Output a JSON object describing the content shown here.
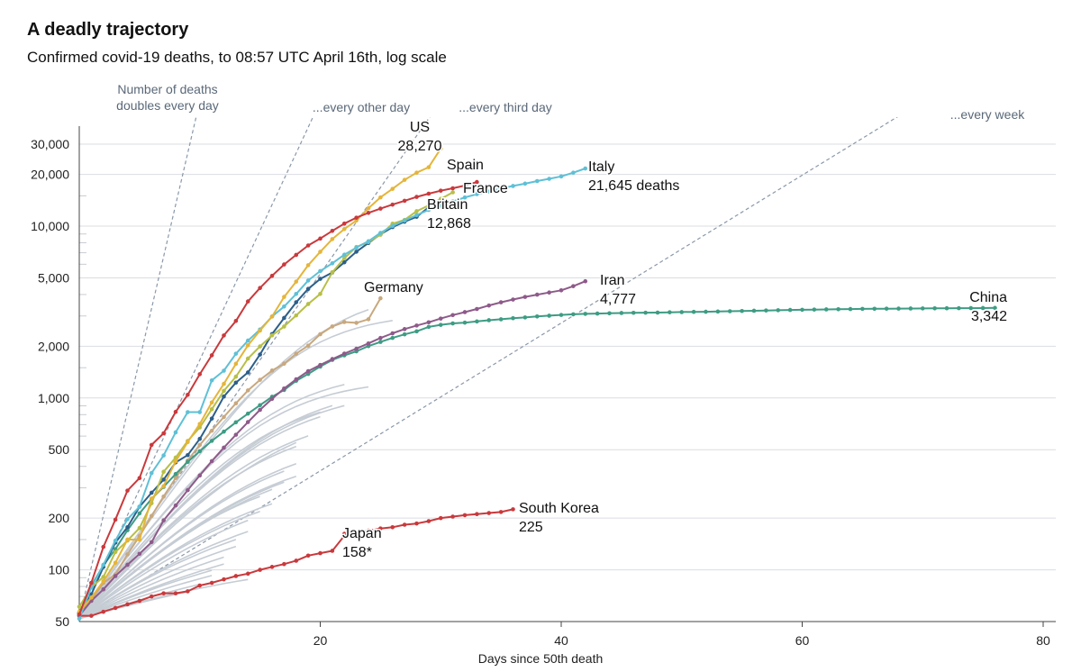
{
  "chart_data": {
    "type": "line",
    "title": "A deadly trajectory",
    "subtitle": "Confirmed covid-19 deaths, to 08:57 UTC April 16th, log scale",
    "xlabel": "Days since 50th death",
    "ylabel": "",
    "yscale": "log",
    "xlim": [
      0,
      80
    ],
    "ylim": [
      50,
      42000
    ],
    "x_ticks": [
      20,
      40,
      60,
      80
    ],
    "y_ticks": [
      50,
      100,
      200,
      500,
      1000,
      2000,
      5000,
      10000,
      20000,
      30000
    ],
    "y_tick_labels": [
      "50",
      "100",
      "200",
      "500",
      "1,000",
      "2,000",
      "5,000",
      "10,000",
      "20,000",
      "30,000"
    ],
    "grid": "horizontal",
    "reference_lines": [
      {
        "label_lines": [
          "Number of deaths",
          "doubles every day"
        ],
        "doubling_days": 1
      },
      {
        "label_lines": [
          "...every other day"
        ],
        "doubling_days": 2
      },
      {
        "label_lines": [
          "...every third day"
        ],
        "doubling_days": 3
      },
      {
        "label_lines": [
          "...every week"
        ],
        "doubling_days": 7
      }
    ],
    "series": [
      {
        "name": "China",
        "label_lines": [
          "China",
          "3,342"
        ],
        "color": "#3e9c84",
        "x": [
          0,
          1,
          2,
          3,
          4,
          5,
          6,
          7,
          8,
          9,
          10,
          11,
          12,
          13,
          14,
          15,
          16,
          17,
          18,
          19,
          20,
          21,
          22,
          23,
          24,
          25,
          26,
          27,
          28,
          29,
          30,
          31,
          32,
          33,
          34,
          35,
          36,
          37,
          38,
          39,
          40,
          41,
          42,
          43,
          44,
          45,
          46,
          47,
          48,
          49,
          50,
          51,
          52,
          53,
          54,
          55,
          56,
          57,
          58,
          59,
          60,
          61,
          62,
          63,
          64,
          65,
          66,
          67,
          68,
          69,
          70,
          71,
          72,
          73,
          74,
          75,
          76
        ],
        "y": [
          56,
          81,
          106,
          132,
          170,
          213,
          259,
          304,
          361,
          425,
          490,
          563,
          637,
          722,
          811,
          908,
          1016,
          1113,
          1259,
          1380,
          1523,
          1665,
          1770,
          1868,
          2004,
          2118,
          2236,
          2345,
          2442,
          2592,
          2663,
          2715,
          2744,
          2788,
          2835,
          2870,
          2912,
          2943,
          2981,
          3012,
          3042,
          3069,
          3087,
          3099,
          3111,
          3122,
          3130,
          3135,
          3140,
          3153,
          3161,
          3170,
          3174,
          3185,
          3197,
          3207,
          3218,
          3229,
          3241,
          3253,
          3261,
          3268,
          3276,
          3283,
          3292,
          3300,
          3304,
          3308,
          3312,
          3316,
          3320,
          3324,
          3327,
          3330,
          3333,
          3336,
          3342
        ]
      },
      {
        "name": "Italy",
        "label_lines": [
          "Italy",
          "21,645 deaths"
        ],
        "color": "#5fc0d6",
        "x": [
          0,
          1,
          2,
          3,
          4,
          5,
          6,
          7,
          8,
          9,
          10,
          11,
          12,
          13,
          14,
          15,
          16,
          17,
          18,
          19,
          20,
          21,
          22,
          23,
          24,
          25,
          26,
          27,
          28,
          29,
          30,
          31,
          32,
          33,
          34,
          35,
          36,
          37,
          38,
          39,
          40,
          41,
          42
        ],
        "y": [
          52,
          79,
          107,
          148,
          197,
          233,
          366,
          463,
          631,
          827,
          827,
          1266,
          1441,
          1809,
          2158,
          2503,
          2978,
          3405,
          4032,
          4825,
          5476,
          6077,
          6820,
          7503,
          8165,
          9134,
          10023,
          10779,
          11591,
          12428,
          13155,
          13915,
          14681,
          15362,
          15887,
          16523,
          17127,
          17669,
          18279,
          18849,
          19468,
          20465,
          21645
        ]
      },
      {
        "name": "Spain",
        "label_lines": [
          "Spain"
        ],
        "color": "#c9393c",
        "x": [
          0,
          1,
          2,
          3,
          4,
          5,
          6,
          7,
          8,
          9,
          10,
          11,
          12,
          13,
          14,
          15,
          16,
          17,
          18,
          19,
          20,
          21,
          22,
          23,
          24,
          25,
          26,
          27,
          28,
          29,
          30,
          31,
          32,
          33
        ],
        "y": [
          55,
          84,
          136,
          196,
          289,
          342,
          533,
          623,
          830,
          1043,
          1375,
          1772,
          2311,
          2808,
          3647,
          4365,
          5138,
          5982,
          6803,
          7716,
          8464,
          9387,
          10348,
          11198,
          11947,
          12641,
          13341,
          14045,
          14792,
          15447,
          16081,
          16606,
          17209,
          18056
        ]
      },
      {
        "name": "US",
        "label_lines": [
          "US",
          "28,270"
        ],
        "color": "#e5b53a",
        "x": [
          0,
          1,
          2,
          3,
          4,
          5,
          6,
          7,
          8,
          9,
          10,
          11,
          12,
          13,
          14,
          15,
          16,
          17,
          18,
          19,
          20,
          21,
          22,
          23,
          24,
          25,
          26,
          27,
          28,
          29,
          30
        ],
        "y": [
          57,
          69,
          86,
          110,
          150,
          150,
          260,
          307,
          428,
          554,
          706,
          942,
          1209,
          1581,
          2026,
          2467,
          2978,
          3873,
          4757,
          5926,
          7087,
          8407,
          9619,
          10783,
          12722,
          14695,
          16478,
          18586,
          20463,
          22020,
          28270
        ]
      },
      {
        "name": "France",
        "label_lines": [
          "France"
        ],
        "color": "#b7bf46",
        "x": [
          0,
          1,
          2,
          3,
          4,
          5,
          6,
          7,
          8,
          9,
          10,
          11,
          12,
          13,
          14,
          15,
          16,
          17,
          18,
          19,
          20,
          21,
          22,
          23,
          24,
          25,
          26,
          27,
          28,
          29,
          30,
          31
        ],
        "y": [
          61,
          79,
          91,
          127,
          148,
          175,
          244,
          372,
          450,
          562,
          674,
          860,
          1100,
          1331,
          1696,
          1995,
          2314,
          2606,
          3024,
          3523,
          4032,
          5387,
          6507,
          7560,
          8078,
          8911,
          10328,
          10869,
          12210,
          13197,
          14393,
          15729
        ]
      },
      {
        "name": "Britain",
        "label_lines": [
          "Britain",
          "12,868"
        ],
        "color": "#2c5f8a",
        "x": [
          0,
          1,
          2,
          3,
          4,
          5,
          6,
          7,
          8,
          9,
          10,
          11,
          12,
          13,
          14,
          15,
          16,
          17,
          18,
          19,
          20,
          21,
          22,
          23,
          24,
          25,
          26,
          27,
          28,
          29
        ],
        "y": [
          56,
          72,
          104,
          144,
          177,
          233,
          281,
          335,
          422,
          465,
          578,
          759,
          1019,
          1228,
          1408,
          1789,
          2352,
          2921,
          3605,
          4313,
          4934,
          5373,
          6159,
          7097,
          7978,
          8958,
          9875,
          10612,
          11329,
          12868
        ]
      },
      {
        "name": "Germany",
        "label_lines": [
          "Germany"
        ],
        "color": "#c8a87e",
        "x": [
          0,
          1,
          2,
          3,
          4,
          5,
          6,
          7,
          8,
          9,
          10,
          11,
          12,
          13,
          14,
          15,
          16,
          17,
          18,
          19,
          20,
          21,
          22,
          23,
          24,
          25
        ],
        "y": [
          55,
          67,
          84,
          94,
          123,
          157,
          206,
          267,
          342,
          433,
          533,
          645,
          775,
          931,
          1107,
          1275,
          1444,
          1584,
          1810,
          2016,
          2349,
          2607,
          2767,
          2736,
          2871,
          3804
        ]
      },
      {
        "name": "Iran",
        "label_lines": [
          "Iran",
          "4,777"
        ],
        "color": "#8e5a8a",
        "x": [
          0,
          1,
          2,
          3,
          4,
          5,
          6,
          7,
          8,
          9,
          10,
          11,
          12,
          13,
          14,
          15,
          16,
          17,
          18,
          19,
          20,
          21,
          22,
          23,
          24,
          25,
          26,
          27,
          28,
          29,
          30,
          31,
          32,
          33,
          34,
          35,
          36,
          37,
          38,
          39,
          40,
          41,
          42
        ],
        "y": [
          54,
          66,
          77,
          92,
          107,
          124,
          145,
          194,
          237,
          291,
          354,
          429,
          514,
          611,
          724,
          853,
          988,
          1135,
          1284,
          1433,
          1556,
          1685,
          1812,
          1934,
          2077,
          2234,
          2378,
          2517,
          2640,
          2757,
          2898,
          3036,
          3160,
          3294,
          3452,
          3603,
          3739,
          3872,
          3993,
          4110,
          4232,
          4474,
          4777
        ]
      },
      {
        "name": "Japan",
        "label_lines": [
          "Japan",
          "158*"
        ],
        "color": "#c9393c",
        "x": [
          0,
          1,
          2,
          3,
          4,
          5,
          6,
          7,
          8,
          9,
          10,
          11,
          12,
          13,
          14,
          15,
          16,
          17,
          18,
          19,
          20,
          21,
          22
        ],
        "y": [
          54,
          54,
          57,
          60,
          63,
          66,
          70,
          73,
          73,
          75,
          81,
          84,
          88,
          92,
          95,
          100,
          104,
          108,
          113,
          121,
          125,
          129,
          158
        ]
      },
      {
        "name": "South Korea",
        "label_lines": [
          "South Korea",
          "225"
        ],
        "color": "#c9393c",
        "x": [
          22,
          23,
          24,
          25,
          26,
          27,
          28,
          29,
          30,
          31,
          32,
          33,
          34,
          35,
          36
        ],
        "y": [
          162,
          165,
          169,
          174,
          177,
          183,
          186,
          192,
          200,
          204,
          208,
          211,
          214,
          217,
          225
        ]
      }
    ]
  }
}
